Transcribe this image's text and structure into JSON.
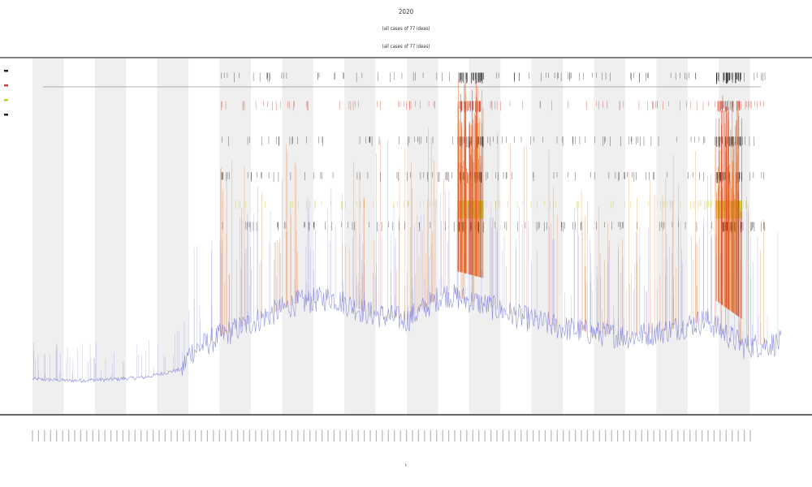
{
  "chart_data": {
    "type": "area",
    "title_lines": [
      "2020",
      "(all cases of 77 ideas)",
      "(all cases of 77 ideas)"
    ],
    "title": "",
    "xlabel": "t",
    "ylabel": "",
    "legend_placement": "top-left",
    "legend_marks": [
      "",
      "",
      "",
      ""
    ],
    "grid": false,
    "band_count": 12,
    "x_tick_count": 120,
    "ylim": [
      0,
      100
    ],
    "baseline_series": {
      "name": "",
      "color": "#6b6bd6",
      "profile": [
        [
          0,
          2
        ],
        [
          0.05,
          1.5
        ],
        [
          0.1,
          1.8
        ],
        [
          0.15,
          2.5
        ],
        [
          0.2,
          5
        ],
        [
          0.21,
          10
        ],
        [
          0.25,
          15
        ],
        [
          0.3,
          20
        ],
        [
          0.35,
          25
        ],
        [
          0.4,
          27
        ],
        [
          0.45,
          22
        ],
        [
          0.5,
          20
        ],
        [
          0.55,
          28
        ],
        [
          0.6,
          25
        ],
        [
          0.65,
          21
        ],
        [
          0.7,
          18
        ],
        [
          0.75,
          16
        ],
        [
          0.8,
          15
        ],
        [
          0.85,
          17
        ],
        [
          0.9,
          20
        ],
        [
          0.95,
          12
        ],
        [
          1.0,
          13
        ]
      ]
    },
    "spike_series": {
      "name": "",
      "color": "#e8742a",
      "clusters": [
        {
          "x": 0.585,
          "height": 60,
          "width": 0.035
        },
        {
          "x": 0.93,
          "height": 65,
          "width": 0.035
        }
      ]
    },
    "mark_rows": [
      {
        "name": "",
        "color": "#222222",
        "y_frac": 0.04
      },
      {
        "name": "",
        "color": "#d33c2a",
        "y_frac": 0.12
      },
      {
        "name": "",
        "color": "#222222",
        "y_frac": 0.22
      },
      {
        "name": "",
        "color": "#222222",
        "y_frac": 0.32
      },
      {
        "name": "",
        "color": "#c9cf1e",
        "y_frac": 0.4
      },
      {
        "name": "",
        "color": "#222222",
        "y_frac": 0.46
      }
    ]
  }
}
